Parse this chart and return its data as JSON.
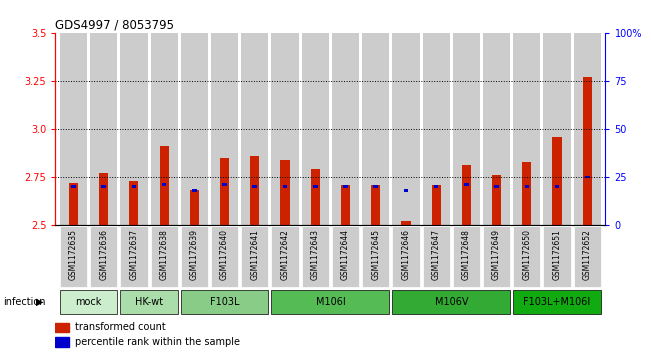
{
  "title": "GDS4997 / 8053795",
  "samples": [
    "GSM1172635",
    "GSM1172636",
    "GSM1172637",
    "GSM1172638",
    "GSM1172639",
    "GSM1172640",
    "GSM1172641",
    "GSM1172642",
    "GSM1172643",
    "GSM1172644",
    "GSM1172645",
    "GSM1172646",
    "GSM1172647",
    "GSM1172648",
    "GSM1172649",
    "GSM1172650",
    "GSM1172651",
    "GSM1172652"
  ],
  "red_values": [
    2.72,
    2.77,
    2.73,
    2.91,
    2.68,
    2.85,
    2.86,
    2.84,
    2.79,
    2.71,
    2.71,
    2.52,
    2.71,
    2.81,
    2.76,
    2.83,
    2.96,
    3.27
  ],
  "blue_pct": [
    20,
    20,
    20,
    21,
    18,
    21,
    20,
    20,
    20,
    20,
    20,
    18,
    20,
    21,
    20,
    20,
    20,
    25
  ],
  "groups": [
    {
      "label": "mock",
      "color": "#cceecc",
      "start": 0,
      "end": 2
    },
    {
      "label": "HK-wt",
      "color": "#aaddaa",
      "start": 2,
      "end": 4
    },
    {
      "label": "F103L",
      "color": "#88cc88",
      "start": 4,
      "end": 7
    },
    {
      "label": "M106I",
      "color": "#55bb55",
      "start": 7,
      "end": 11
    },
    {
      "label": "M106V",
      "color": "#33aa33",
      "start": 11,
      "end": 15
    },
    {
      "label": "F103L+M106I",
      "color": "#11aa11",
      "start": 15,
      "end": 18
    }
  ],
  "ylim_left": [
    2.5,
    3.5
  ],
  "ylim_right": [
    0,
    100
  ],
  "yticks_left": [
    2.5,
    2.75,
    3.0,
    3.25,
    3.5
  ],
  "yticks_right": [
    0,
    25,
    50,
    75,
    100
  ],
  "ytick_labels_right": [
    "0",
    "25",
    "50",
    "75",
    "100%"
  ],
  "grid_lines": [
    2.75,
    3.0,
    3.25
  ],
  "bar_width": 0.55,
  "bar_color_red": "#cc2200",
  "bar_color_blue": "#0000cc",
  "col_bg_color": "#cccccc",
  "bg_color": "#ffffff",
  "infection_label": "infection"
}
